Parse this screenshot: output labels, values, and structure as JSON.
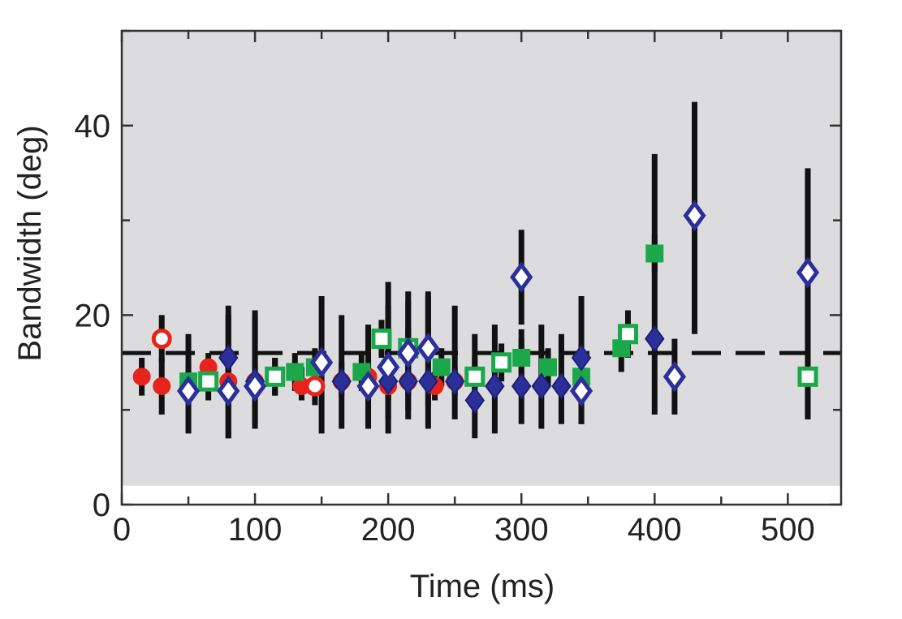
{
  "chart_data": {
    "type": "scatter",
    "xlabel": "Time (ms)",
    "ylabel": "Bandwidth (deg)",
    "xlim": [
      0,
      540
    ],
    "ylim": [
      0,
      50
    ],
    "x_ticks": [
      0,
      100,
      200,
      300,
      400,
      500
    ],
    "y_ticks": [
      0,
      20,
      40
    ],
    "x_tick_labels": [
      "0",
      "100",
      "200",
      "300",
      "400",
      "500"
    ],
    "y_tick_labels": [
      "0",
      "20",
      "40"
    ],
    "grid": false,
    "shaded_band": {
      "y_from": 2,
      "y_to": 50,
      "color": "#dcdcde"
    },
    "reference_line": {
      "y": 16,
      "style": "dashed",
      "color": "#111111"
    },
    "colors": {
      "red": "#e8231b",
      "green": "#1aa84a",
      "blue": "#2b2f9a",
      "navy": "#1c2170",
      "errorbar": "#111111"
    },
    "series": [
      {
        "marker": "circle-filled",
        "color": "red",
        "points": [
          {
            "x": 15,
            "y": 13.5,
            "lo": 11.5,
            "hi": 15.5
          },
          {
            "x": 30,
            "y": 12.5,
            "lo": 9.5,
            "hi": 15.5
          },
          {
            "x": 65,
            "y": 14.5,
            "lo": 12,
            "hi": 16
          },
          {
            "x": 80,
            "y": 13.0,
            "lo": 11,
            "hi": 15
          },
          {
            "x": 100,
            "y": 13.0,
            "lo": 11,
            "hi": 15
          },
          {
            "x": 115,
            "y": 13.5,
            "lo": 11.5,
            "hi": 15.5
          },
          {
            "x": 135,
            "y": 12.5,
            "lo": 11,
            "hi": 14.5
          },
          {
            "x": 165,
            "y": 13.0,
            "lo": 11.5,
            "hi": 15
          },
          {
            "x": 185,
            "y": 13.5,
            "lo": 12,
            "hi": 15
          },
          {
            "x": 200,
            "y": 12.5,
            "lo": 11,
            "hi": 14.5
          },
          {
            "x": 215,
            "y": 13.0,
            "lo": 11.5,
            "hi": 15
          },
          {
            "x": 235,
            "y": 12.5,
            "lo": 11,
            "hi": 14
          },
          {
            "x": 250,
            "y": 13.0,
            "lo": 11.5,
            "hi": 14.5
          }
        ]
      },
      {
        "marker": "circle-open",
        "color": "red",
        "points": [
          {
            "x": 30,
            "y": 17.5,
            "lo": 15,
            "hi": 20
          },
          {
            "x": 145,
            "y": 12.5,
            "lo": 10.5,
            "hi": 14.5
          }
        ]
      },
      {
        "marker": "square-filled",
        "color": "green",
        "points": [
          {
            "x": 50,
            "y": 13.0,
            "lo": 11,
            "hi": 15
          },
          {
            "x": 130,
            "y": 14.0,
            "lo": 12,
            "hi": 16
          },
          {
            "x": 145,
            "y": 14.5,
            "lo": 12.5,
            "hi": 16.5
          },
          {
            "x": 180,
            "y": 14.0,
            "lo": 12,
            "hi": 16
          },
          {
            "x": 240,
            "y": 14.5,
            "lo": 12.5,
            "hi": 16.5
          },
          {
            "x": 300,
            "y": 15.5,
            "lo": 13.5,
            "hi": 17.5
          },
          {
            "x": 320,
            "y": 14.5,
            "lo": 12.5,
            "hi": 16.5
          },
          {
            "x": 345,
            "y": 13.5,
            "lo": 11.5,
            "hi": 15.5
          },
          {
            "x": 375,
            "y": 16.5,
            "lo": 14,
            "hi": 19
          },
          {
            "x": 400,
            "y": 26.5,
            "lo": 24.5,
            "hi": 28.5
          }
        ]
      },
      {
        "marker": "square-open",
        "color": "green",
        "points": [
          {
            "x": 65,
            "y": 13.0,
            "lo": 11,
            "hi": 15
          },
          {
            "x": 115,
            "y": 13.5,
            "lo": 11.5,
            "hi": 15.5
          },
          {
            "x": 195,
            "y": 17.5,
            "lo": 15.5,
            "hi": 19.5
          },
          {
            "x": 215,
            "y": 16.5,
            "lo": 14.5,
            "hi": 18.5
          },
          {
            "x": 265,
            "y": 13.5,
            "lo": 11.5,
            "hi": 15.5
          },
          {
            "x": 285,
            "y": 15.0,
            "lo": 13,
            "hi": 17
          },
          {
            "x": 380,
            "y": 18.0,
            "lo": 15.5,
            "hi": 20.5
          },
          {
            "x": 515,
            "y": 13.5,
            "lo": 9,
            "hi": 35.5
          }
        ]
      },
      {
        "marker": "diamond-filled",
        "color": "blue",
        "points": [
          {
            "x": 80,
            "y": 15.5,
            "lo": 7,
            "hi": 21
          },
          {
            "x": 100,
            "y": 13.0,
            "lo": 8.5,
            "hi": 20.5
          },
          {
            "x": 165,
            "y": 13.0,
            "lo": 8,
            "hi": 20
          },
          {
            "x": 200,
            "y": 13.0,
            "lo": 7.5,
            "hi": 23.5
          },
          {
            "x": 215,
            "y": 13.0,
            "lo": 9,
            "hi": 22.5
          },
          {
            "x": 230,
            "y": 13.0,
            "lo": 8,
            "hi": 22.5
          },
          {
            "x": 250,
            "y": 13.0,
            "lo": 9,
            "hi": 21
          },
          {
            "x": 265,
            "y": 11.0,
            "lo": 7,
            "hi": 18
          },
          {
            "x": 280,
            "y": 12.5,
            "lo": 7.5,
            "hi": 19
          },
          {
            "x": 300,
            "y": 12.5,
            "lo": 8.5,
            "hi": 18.5
          },
          {
            "x": 315,
            "y": 12.5,
            "lo": 8,
            "hi": 19
          },
          {
            "x": 330,
            "y": 12.5,
            "lo": 8.5,
            "hi": 18
          },
          {
            "x": 345,
            "y": 15.5,
            "lo": 8.5,
            "hi": 22
          },
          {
            "x": 400,
            "y": 17.5,
            "lo": 9.5,
            "hi": 37
          }
        ]
      },
      {
        "marker": "diamond-open",
        "color": "blue",
        "points": [
          {
            "x": 50,
            "y": 12.0,
            "lo": 7.5,
            "hi": 18
          },
          {
            "x": 80,
            "y": 12.0,
            "lo": 7,
            "hi": 20
          },
          {
            "x": 100,
            "y": 12.5,
            "lo": 8,
            "hi": 20
          },
          {
            "x": 150,
            "y": 15.0,
            "lo": 7.5,
            "hi": 22
          },
          {
            "x": 185,
            "y": 12.5,
            "lo": 8,
            "hi": 19
          },
          {
            "x": 200,
            "y": 14.5,
            "lo": 9,
            "hi": 21
          },
          {
            "x": 215,
            "y": 16.0,
            "lo": 10,
            "hi": 21.5
          },
          {
            "x": 230,
            "y": 16.5,
            "lo": 10.5,
            "hi": 22
          },
          {
            "x": 300,
            "y": 24.0,
            "lo": 19,
            "hi": 29
          },
          {
            "x": 345,
            "y": 12.0,
            "lo": 8.5,
            "hi": 17
          },
          {
            "x": 415,
            "y": 13.5,
            "lo": 9.5,
            "hi": 17.5
          },
          {
            "x": 430,
            "y": 30.5,
            "lo": 18,
            "hi": 42.5
          },
          {
            "x": 515,
            "y": 24.5,
            "lo": 9,
            "hi": 35
          }
        ]
      }
    ]
  }
}
